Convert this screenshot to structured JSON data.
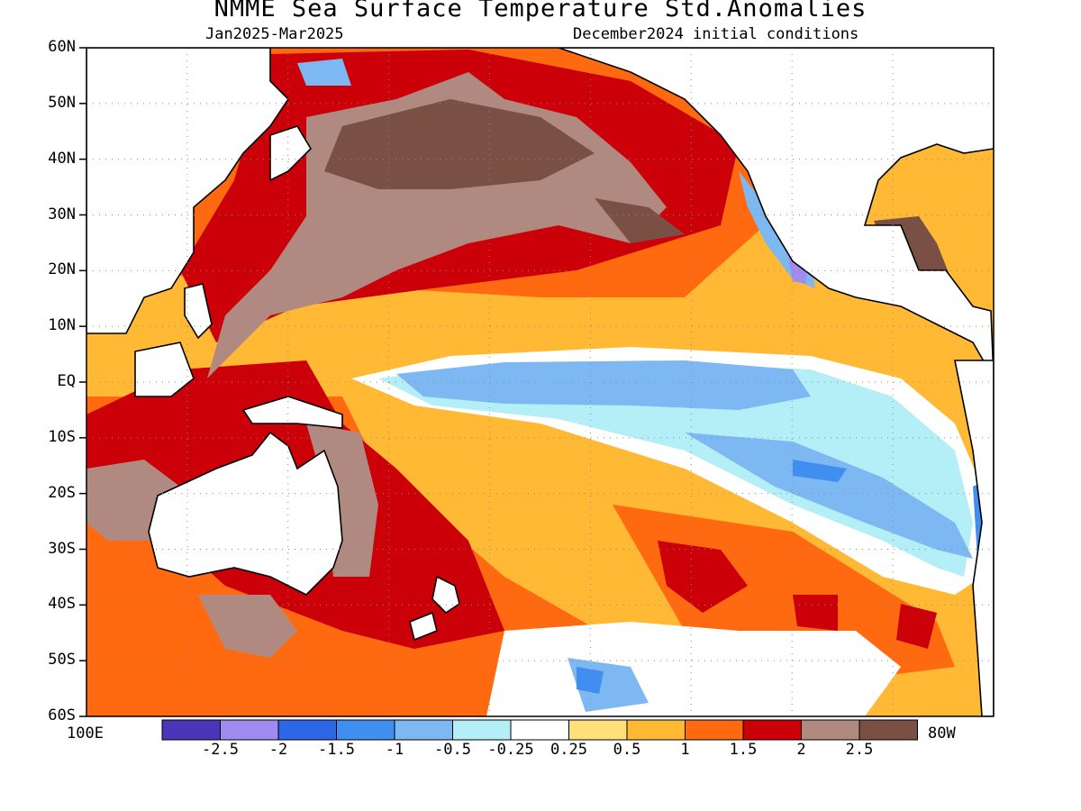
{
  "title": "NMME Sea Surface Temperature Std.Anomalies",
  "subtitle_left": "Jan2025-Mar2025",
  "subtitle_right": "December2024 initial conditions",
  "lat_labels": [
    "60N",
    "50N",
    "40N",
    "30N",
    "20N",
    "10N",
    "EQ",
    "10S",
    "20S",
    "30S",
    "40S",
    "50S",
    "60S"
  ],
  "lon_labels": {
    "left": "100E",
    "right": "80W"
  },
  "colorbar": {
    "colors": [
      "#4b35b8",
      "#a08cf0",
      "#2b67e6",
      "#3f8ef0",
      "#7db8f2",
      "#b4eef6",
      "#ffffff",
      "#ffe07a",
      "#ffb934",
      "#ff6a10",
      "#cc0008",
      "#b08a80",
      "#7a4f44"
    ],
    "labels": [
      "-2.5",
      "-2",
      "-1.5",
      "-1",
      "-0.5",
      "-0.25",
      "0.25",
      "0.5",
      "1",
      "1.5",
      "2",
      "2.5"
    ]
  },
  "colors": {
    "land": "#ffffff",
    "coast": "#000000",
    "grid": "#8a8a8a"
  }
}
